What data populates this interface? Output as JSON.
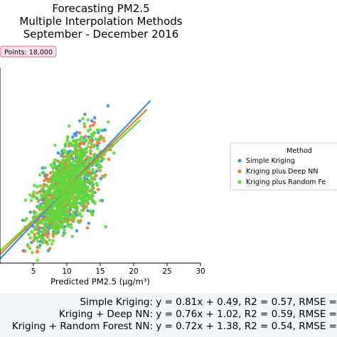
{
  "chart_data": {
    "type": "scatter",
    "title_lines": [
      "Forecasting PM2.5",
      "Multiple Interpolation Methods",
      "September - December 2016"
    ],
    "badge": "Points: 18,000",
    "xlabel": "Predicted PM2.5 (μg/m³)",
    "ylabel": "",
    "xlim": [
      0,
      30
    ],
    "x_ticks": [
      "5",
      "10",
      "15",
      "20",
      "25",
      "30"
    ],
    "legend": {
      "title": "Method",
      "placement": "right"
    },
    "series": [
      {
        "name": "Simple Kriging",
        "color": "#3a8fd6",
        "fit": {
          "slope": 0.81,
          "intercept": 0.49
        },
        "stats": "Simple Kriging: y = 0.81x + 0.49, R2 = 0.57, RMSE ="
      },
      {
        "name": "Kriging plus Deep NN",
        "color": "#f07a2c",
        "fit": {
          "slope": 0.76,
          "intercept": 1.02
        },
        "stats": "Kriging + Deep NN: y = 0.76x + 1.02, R2 = 0.59, RMSE ="
      },
      {
        "name": "Kriging plus Random Fe",
        "color": "#63d63c",
        "fit": {
          "slope": 0.72,
          "intercept": 1.38
        },
        "stats": "Kriging + Random Forest NN: y = 0.72x + 1.38, R2 = 0.54, RMSE ="
      }
    ]
  }
}
